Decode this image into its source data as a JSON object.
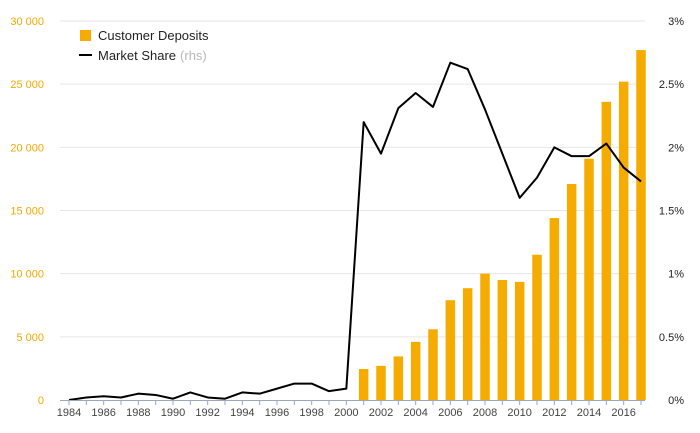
{
  "chart_data": {
    "type": "bar+line",
    "x": [
      1984,
      1985,
      1986,
      1987,
      1988,
      1989,
      1990,
      1991,
      1992,
      1993,
      1994,
      1995,
      1996,
      1997,
      1998,
      1999,
      2000,
      2001,
      2002,
      2003,
      2004,
      2005,
      2006,
      2007,
      2008,
      2009,
      2010,
      2011,
      2012,
      2013,
      2014,
      2015,
      2016,
      2017
    ],
    "x_tick_labels": [
      "1984",
      "1986",
      "1988",
      "1990",
      "1992",
      "1994",
      "1996",
      "1998",
      "2000",
      "2002",
      "2004",
      "2006",
      "2008",
      "2010",
      "2012",
      "2014",
      "2016"
    ],
    "series": [
      {
        "name": "Customer Deposits",
        "type": "bar",
        "axis": "left",
        "color": "#f5ab00",
        "values": [
          null,
          null,
          null,
          null,
          null,
          null,
          null,
          null,
          null,
          null,
          null,
          null,
          null,
          null,
          null,
          null,
          null,
          2450,
          2700,
          3450,
          4600,
          5600,
          7900,
          8850,
          10000,
          9500,
          9350,
          11500,
          14400,
          17100,
          19100,
          23600,
          25200,
          27700
        ]
      },
      {
        "name": "Market Share",
        "name_note": "(rhs)",
        "type": "line",
        "axis": "right",
        "color": "#000000",
        "values": [
          0.0,
          0.02,
          0.03,
          0.02,
          0.05,
          0.04,
          0.01,
          0.06,
          0.02,
          0.01,
          0.06,
          0.05,
          0.09,
          0.13,
          0.13,
          0.07,
          0.09,
          2.2,
          1.95,
          2.31,
          2.43,
          2.32,
          2.67,
          2.62,
          2.3,
          1.95,
          1.6,
          1.76,
          2.0,
          1.93,
          1.93,
          2.03,
          1.84,
          1.73
        ]
      }
    ],
    "y_left": {
      "min": 0,
      "max": 30000,
      "ticks": [
        0,
        5000,
        10000,
        15000,
        20000,
        25000,
        30000
      ],
      "tick_labels": [
        "0",
        "5 000",
        "10 000",
        "15 000",
        "20 000",
        "25 000",
        "30 000"
      ]
    },
    "y_right": {
      "min": 0,
      "max": 3,
      "ticks": [
        0,
        0.5,
        1,
        1.5,
        2,
        2.5,
        3
      ],
      "tick_labels": [
        "0%",
        "0.5%",
        "1%",
        "1.5%",
        "2%",
        "2.5%",
        "3%"
      ]
    },
    "grid": true,
    "legend_position": "top-left"
  }
}
